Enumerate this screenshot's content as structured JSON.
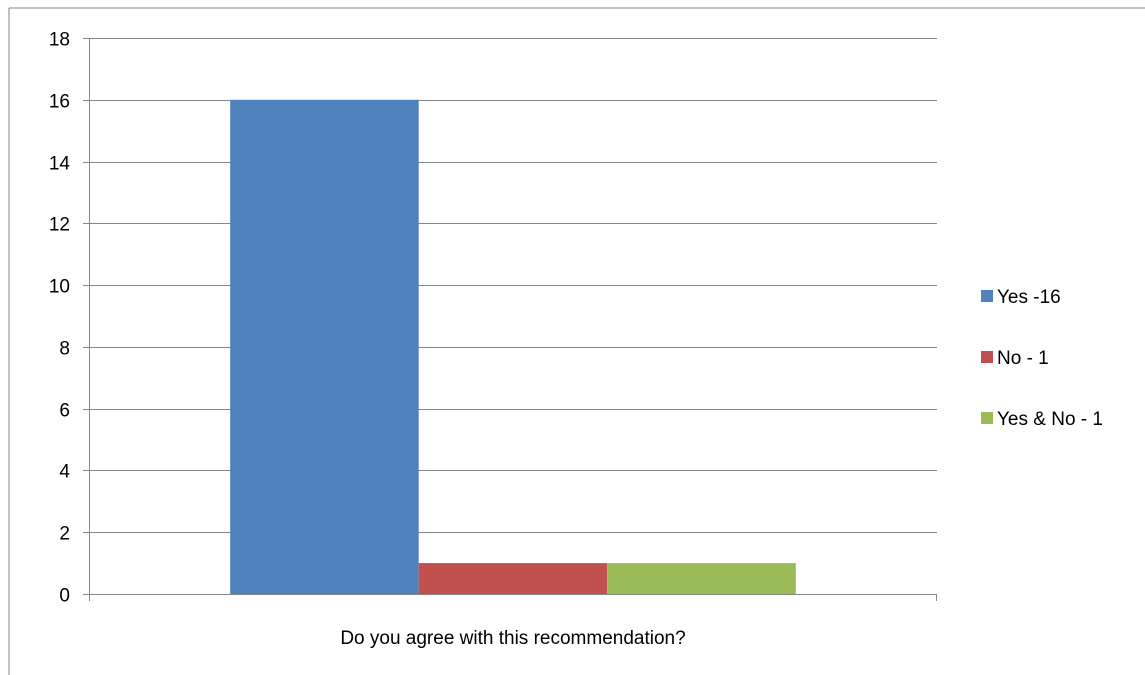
{
  "chart_data": {
    "type": "bar",
    "categories": [
      "Do you agree with this recommendation?"
    ],
    "series": [
      {
        "name": "Yes -16",
        "values": [
          16
        ],
        "color": "#4F81BD"
      },
      {
        "name": "No - 1",
        "values": [
          1
        ],
        "color": "#C0504D"
      },
      {
        "name": "Yes & No - 1",
        "values": [
          1
        ],
        "color": "#9BBB59"
      }
    ],
    "title": "",
    "xlabel": "Do you agree with this recommendation?",
    "ylabel": "",
    "ylim": [
      0,
      18
    ],
    "yticks": [
      0,
      2,
      4,
      6,
      8,
      10,
      12,
      14,
      16,
      18
    ],
    "grid": "horizontal",
    "legend": "right",
    "colors": {
      "gridline": "#868686",
      "axis": "#868686",
      "border": "#868686"
    }
  }
}
